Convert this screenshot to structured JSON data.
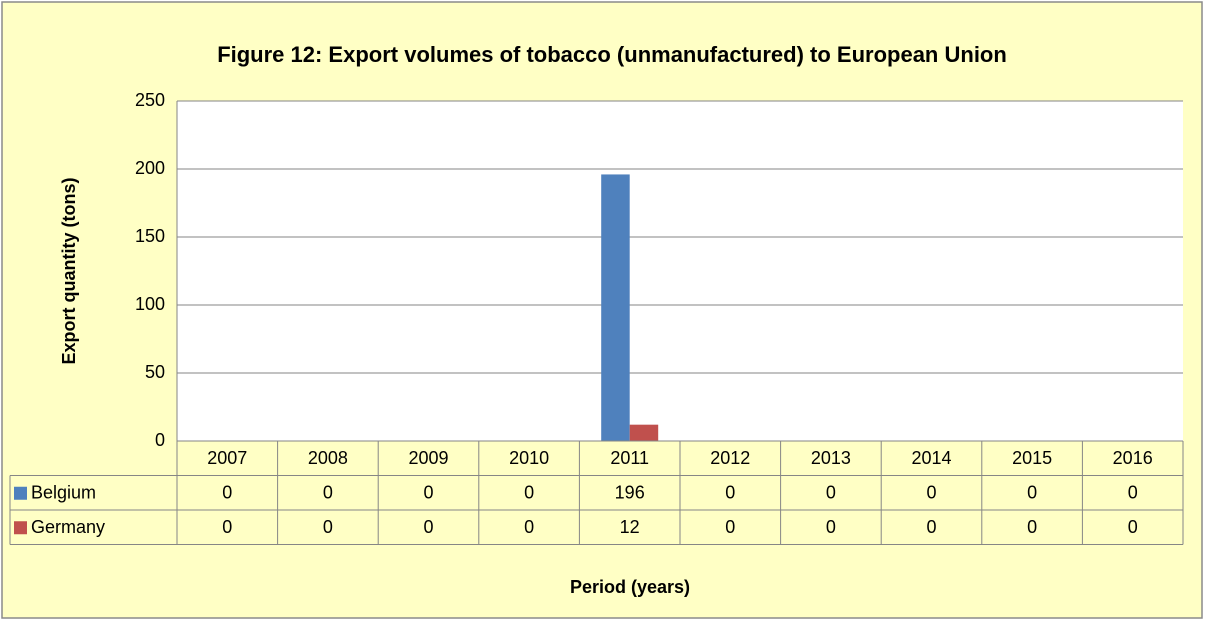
{
  "chart_data": {
    "type": "bar",
    "title": "Figure 12: Export volumes of tobacco (unmanufactured) to European Union",
    "x_label": "Period (years)",
    "y_label": "Export quantity (tons)",
    "categories": [
      "2007",
      "2008",
      "2009",
      "2010",
      "2011",
      "2012",
      "2013",
      "2014",
      "2015",
      "2016"
    ],
    "series": [
      {
        "name": "Belgium",
        "color": "#4f81bd",
        "values": [
          0,
          0,
          0,
          0,
          196,
          0,
          0,
          0,
          0,
          0
        ]
      },
      {
        "name": "Germany",
        "color": "#c0504d",
        "values": [
          0,
          0,
          0,
          0,
          12,
          0,
          0,
          0,
          0,
          0
        ]
      }
    ],
    "ylim": [
      0,
      250
    ],
    "yticks": [
      0,
      50,
      100,
      150,
      200,
      250
    ],
    "grid": true
  }
}
